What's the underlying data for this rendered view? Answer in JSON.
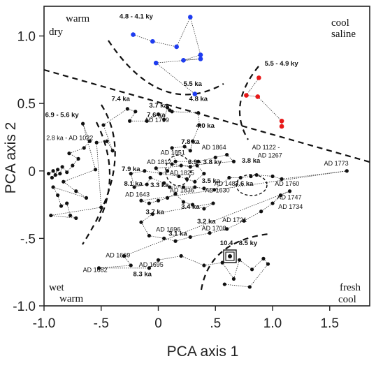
{
  "chart_data": {
    "type": "scatter",
    "title": "",
    "xlabel": "PCA axis 1",
    "ylabel": "PCA axis 2",
    "xlim": [
      -1.0,
      1.85
    ],
    "ylim": [
      -1.0,
      1.22
    ],
    "x_ticks": [
      -1.0,
      -0.5,
      0.0,
      0.5,
      1.0,
      1.5
    ],
    "x_tick_labels": [
      "-1.0",
      "-.5",
      "0",
      ".5",
      "1.0",
      "1.5"
    ],
    "y_ticks": [
      1.0,
      0.5,
      0.0,
      -0.5,
      -1.0
    ],
    "y_tick_labels": [
      "1.0",
      "0.5",
      "0",
      "-.5",
      "-1.0"
    ],
    "grid": false,
    "corner_labels": {
      "top_left": [
        "warm",
        "dry"
      ],
      "top_right": [
        "cool",
        "saline"
      ],
      "bottom_left": [
        "wet",
        "warm"
      ],
      "bottom_right": [
        "fresh",
        "cool"
      ]
    },
    "series": [
      {
        "color": "#1e3cf0",
        "points": [
          [
            -0.22,
            1.01
          ],
          [
            -0.05,
            0.96
          ],
          [
            0.16,
            0.92
          ],
          [
            0.28,
            1.14
          ],
          [
            0.37,
            0.86
          ],
          [
            0.22,
            0.82
          ],
          [
            0.37,
            0.83
          ],
          [
            -0.02,
            0.8
          ],
          [
            0.32,
            0.57
          ]
        ]
      },
      {
        "color": "#e81818",
        "points": [
          [
            0.88,
            0.69
          ],
          [
            0.77,
            0.56
          ],
          [
            0.87,
            0.55
          ],
          [
            1.08,
            0.37
          ],
          [
            1.08,
            0.33
          ]
        ]
      },
      {
        "color": "#111111",
        "points": [
          [
            -0.96,
            -0.02
          ],
          [
            -0.92,
            0.0
          ],
          [
            -0.9,
            -0.03
          ],
          [
            -0.88,
            0.01
          ],
          [
            -0.93,
            -0.05
          ],
          [
            -0.86,
            -0.02
          ],
          [
            -0.84,
            0.03
          ],
          [
            -0.8,
            -0.01
          ],
          [
            -0.75,
            0.04
          ],
          [
            -0.7,
            0.09
          ],
          [
            -0.78,
            0.13
          ],
          [
            -0.65,
            0.17
          ],
          [
            -0.6,
            0.22
          ],
          [
            -0.66,
            0.35
          ],
          [
            -0.55,
            0.01
          ],
          [
            -0.83,
            -0.08
          ],
          [
            -0.72,
            -0.15
          ],
          [
            -0.63,
            -0.2
          ],
          [
            -0.92,
            -0.12
          ],
          [
            -0.88,
            -0.18
          ],
          [
            -0.85,
            -0.26
          ],
          [
            -0.8,
            -0.24
          ],
          [
            -0.77,
            -0.33
          ],
          [
            -0.72,
            -0.35
          ],
          [
            -0.94,
            -0.33
          ],
          [
            -0.5,
            -0.27
          ],
          [
            -0.54,
            0.21
          ],
          [
            -0.45,
            0.22
          ],
          [
            -0.4,
            0.15
          ],
          [
            -0.48,
            0.34
          ],
          [
            -0.27,
            0.46
          ],
          [
            -0.2,
            0.44
          ],
          [
            -0.25,
            0.37
          ],
          [
            -0.1,
            0.37
          ],
          [
            0.0,
            0.42
          ],
          [
            0.05,
            0.38
          ],
          [
            0.08,
            0.47
          ],
          [
            0.1,
            0.45
          ],
          [
            0.12,
            0.44
          ],
          [
            0.35,
            0.43
          ],
          [
            0.36,
            0.34
          ],
          [
            0.3,
            0.22
          ],
          [
            0.28,
            0.15
          ],
          [
            0.23,
            0.18
          ],
          [
            0.12,
            0.17
          ],
          [
            0.15,
            0.07
          ],
          [
            0.35,
            0.07
          ],
          [
            0.5,
            0.1
          ],
          [
            0.6,
            0.12
          ],
          [
            0.66,
            0.07
          ],
          [
            -0.02,
            0.02
          ],
          [
            0.02,
            -0.02
          ],
          [
            0.08,
            0.0
          ],
          [
            0.12,
            0.05
          ],
          [
            0.2,
            0.04
          ],
          [
            0.28,
            0.03
          ],
          [
            0.34,
            0.04
          ],
          [
            0.4,
            -0.02
          ],
          [
            0.32,
            -0.08
          ],
          [
            0.25,
            -0.06
          ],
          [
            0.18,
            -0.04
          ],
          [
            -0.12,
            0.0
          ],
          [
            -0.24,
            -0.02
          ],
          [
            -0.21,
            -0.12
          ],
          [
            -0.1,
            -0.1
          ],
          [
            -0.07,
            -0.05
          ],
          [
            0.05,
            -0.09
          ],
          [
            0.1,
            -0.12
          ],
          [
            0.22,
            -0.12
          ],
          [
            0.32,
            -0.12
          ],
          [
            0.4,
            -0.13
          ],
          [
            0.49,
            -0.14
          ],
          [
            0.62,
            -0.05
          ],
          [
            0.72,
            -0.05
          ],
          [
            0.81,
            -0.04
          ],
          [
            0.86,
            -0.03
          ],
          [
            1.0,
            -0.04
          ],
          [
            1.08,
            -0.06
          ],
          [
            1.65,
            0.0
          ],
          [
            -0.15,
            -0.22
          ],
          [
            -0.08,
            -0.24
          ],
          [
            0.0,
            -0.22
          ],
          [
            0.08,
            -0.2
          ],
          [
            0.15,
            -0.17
          ],
          [
            0.22,
            -0.23
          ],
          [
            0.3,
            -0.25
          ],
          [
            0.4,
            -0.28
          ],
          [
            0.48,
            -0.24
          ],
          [
            -0.05,
            -0.32
          ],
          [
            -0.15,
            -0.38
          ],
          [
            -0.08,
            -0.48
          ],
          [
            0.05,
            -0.5
          ],
          [
            0.15,
            -0.52
          ],
          [
            0.28,
            -0.49
          ],
          [
            0.45,
            -0.46
          ],
          [
            0.6,
            -0.43
          ],
          [
            0.75,
            -0.37
          ],
          [
            0.9,
            -0.3
          ],
          [
            1.0,
            -0.24
          ],
          [
            1.07,
            -0.18
          ],
          [
            1.15,
            -0.15
          ],
          [
            -0.3,
            -0.63
          ],
          [
            -0.24,
            -0.7
          ],
          [
            -0.52,
            -0.72
          ],
          [
            -0.08,
            -0.72
          ],
          [
            0.0,
            -0.66
          ],
          [
            0.2,
            -0.63
          ],
          [
            0.4,
            -0.7
          ],
          [
            0.56,
            -0.68
          ],
          [
            0.66,
            -0.8
          ],
          [
            0.71,
            -0.66
          ],
          [
            0.82,
            -0.73
          ],
          [
            0.92,
            -0.65
          ],
          [
            0.96,
            -0.69
          ],
          [
            0.8,
            -0.86
          ],
          [
            0.58,
            -0.84
          ]
        ]
      }
    ],
    "annotations": [
      {
        "text": "4.8 - 4.1 ky",
        "x": -0.34,
        "y": 1.13,
        "bold": true
      },
      {
        "text": "5.5 - 4.9 ky",
        "x": 0.93,
        "y": 0.78,
        "bold": true
      },
      {
        "text": "5.5 ka",
        "x": 0.22,
        "y": 0.63,
        "bold": true
      },
      {
        "text": "4.8 ka",
        "x": 0.27,
        "y": 0.52,
        "bold": true
      },
      {
        "text": "7.4 ka",
        "x": -0.41,
        "y": 0.52,
        "bold": true
      },
      {
        "text": "3.7 ka",
        "x": -0.08,
        "y": 0.47,
        "bold": true
      },
      {
        "text": "7.6 ka",
        "x": -0.1,
        "y": 0.4,
        "bold": true
      },
      {
        "text": "AD 1799",
        "x": -0.12,
        "y": 0.36,
        "bold": false
      },
      {
        "text": "4.0 ka",
        "x": 0.33,
        "y": 0.32,
        "bold": true
      },
      {
        "text": "6.9 - 5.6 ky",
        "x": -0.99,
        "y": 0.4,
        "bold": true
      },
      {
        "text": "2.8 ka - AD 1022",
        "x": -0.98,
        "y": 0.23,
        "bold": false
      },
      {
        "text": "7.8 ka",
        "x": 0.2,
        "y": 0.2,
        "bold": true
      },
      {
        "text": "AD 1851",
        "x": 0.02,
        "y": 0.12,
        "bold": false
      },
      {
        "text": "AD 1864",
        "x": 0.38,
        "y": 0.16,
        "bold": false
      },
      {
        "text": "AD 1122 -",
        "x": 0.82,
        "y": 0.16,
        "bold": false
      },
      {
        "text": "AD 1267",
        "x": 0.87,
        "y": 0.1,
        "bold": false
      },
      {
        "text": "AD 1812",
        "x": -0.1,
        "y": 0.05,
        "bold": false
      },
      {
        "text": "3.9 - 3.8 ky",
        "x": 0.26,
        "y": 0.05,
        "bold": true
      },
      {
        "text": "3.8 ka",
        "x": 0.73,
        "y": 0.06,
        "bold": true
      },
      {
        "text": "AD 1773",
        "x": 1.45,
        "y": 0.04,
        "bold": false
      },
      {
        "text": "7.9 ka",
        "x": -0.32,
        "y": 0.0,
        "bold": true
      },
      {
        "text": "AD 1825",
        "x": 0.1,
        "y": -0.03,
        "bold": false
      },
      {
        "text": "3.5 ka",
        "x": 0.38,
        "y": -0.09,
        "bold": true
      },
      {
        "text": "3.6 ka",
        "x": 0.67,
        "y": -0.11,
        "bold": true
      },
      {
        "text": "AD 1760",
        "x": 1.02,
        "y": -0.11,
        "bold": false
      },
      {
        "text": "8.1 ka",
        "x": -0.3,
        "y": -0.11,
        "bold": true
      },
      {
        "text": "3.3 ka",
        "x": -0.07,
        "y": -0.12,
        "bold": true
      },
      {
        "text": "AD 1836",
        "x": 0.1,
        "y": -0.16,
        "bold": false
      },
      {
        "text": "AD 1487",
        "x": 0.49,
        "y": -0.11,
        "bold": false
      },
      {
        "text": "AD 1630",
        "x": 0.41,
        "y": -0.16,
        "bold": false
      },
      {
        "text": "AD 1643",
        "x": -0.29,
        "y": -0.19,
        "bold": false
      },
      {
        "text": "AD 1747",
        "x": 1.04,
        "y": -0.21,
        "bold": false
      },
      {
        "text": "AD 1734",
        "x": 1.05,
        "y": -0.28,
        "bold": false
      },
      {
        "text": "3.4 ka",
        "x": 0.2,
        "y": -0.28,
        "bold": true
      },
      {
        "text": "3.7 ka",
        "x": -0.11,
        "y": -0.32,
        "bold": true
      },
      {
        "text": "3.2 ka",
        "x": 0.34,
        "y": -0.39,
        "bold": true
      },
      {
        "text": "AD 1721",
        "x": 0.56,
        "y": -0.38,
        "bold": false
      },
      {
        "text": "AD 1696",
        "x": -0.02,
        "y": -0.45,
        "bold": false
      },
      {
        "text": "AD 1708",
        "x": 0.38,
        "y": -0.44,
        "bold": false
      },
      {
        "text": "3.1 ka",
        "x": 0.09,
        "y": -0.48,
        "bold": true
      },
      {
        "text": "10.4 - 8.5 ky",
        "x": 0.54,
        "y": -0.55,
        "bold": true
      },
      {
        "text": "AD 1669",
        "x": -0.46,
        "y": -0.64,
        "bold": false
      },
      {
        "text": "AD 1695",
        "x": -0.17,
        "y": -0.71,
        "bold": false
      },
      {
        "text": "AD 1682",
        "x": -0.66,
        "y": -0.75,
        "bold": false
      },
      {
        "text": "8.3 ka",
        "x": -0.22,
        "y": -0.78,
        "bold": true
      }
    ]
  }
}
